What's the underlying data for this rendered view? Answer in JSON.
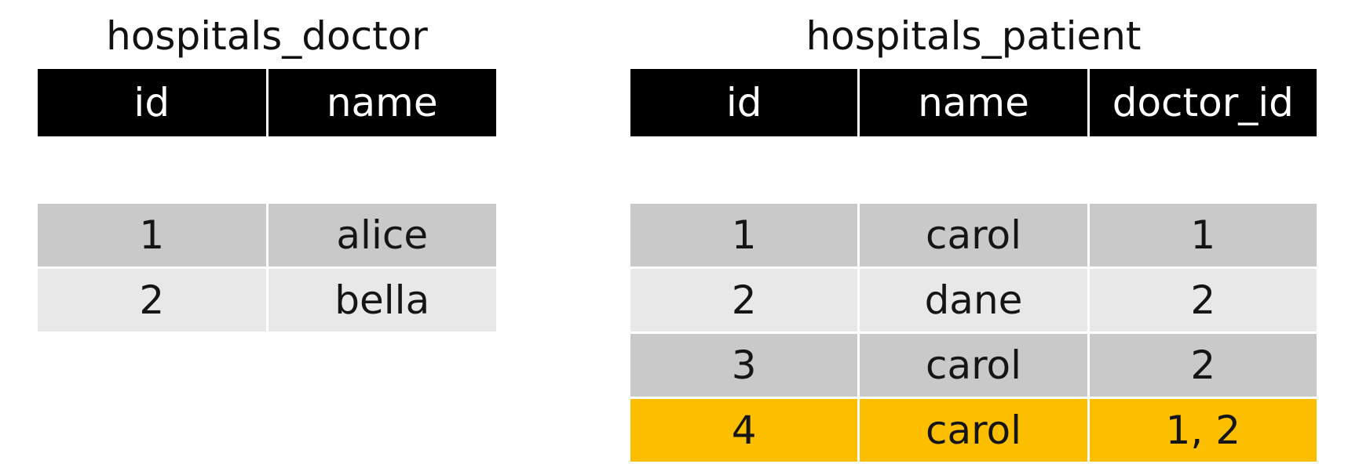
{
  "doctor_table": {
    "title": "hospitals_doctor",
    "columns": [
      "id",
      "name"
    ],
    "rows": [
      [
        "1",
        "alice"
      ],
      [
        "2",
        "bella"
      ]
    ]
  },
  "patient_table": {
    "title": "hospitals_patient",
    "columns": [
      "id",
      "name",
      "doctor_id"
    ],
    "rows": [
      [
        "1",
        "carol",
        "1"
      ],
      [
        "2",
        "dane",
        "2"
      ],
      [
        "3",
        "carol",
        "2"
      ],
      [
        "4",
        "carol",
        "1, 2"
      ]
    ],
    "highlighted_row_index": 3
  },
  "colors": {
    "header_background": "#000000",
    "header_text": "#ffffff",
    "row_dark": "#c9c9c9",
    "row_light": "#e8e8e8",
    "row_highlight": "#fcbf00"
  }
}
